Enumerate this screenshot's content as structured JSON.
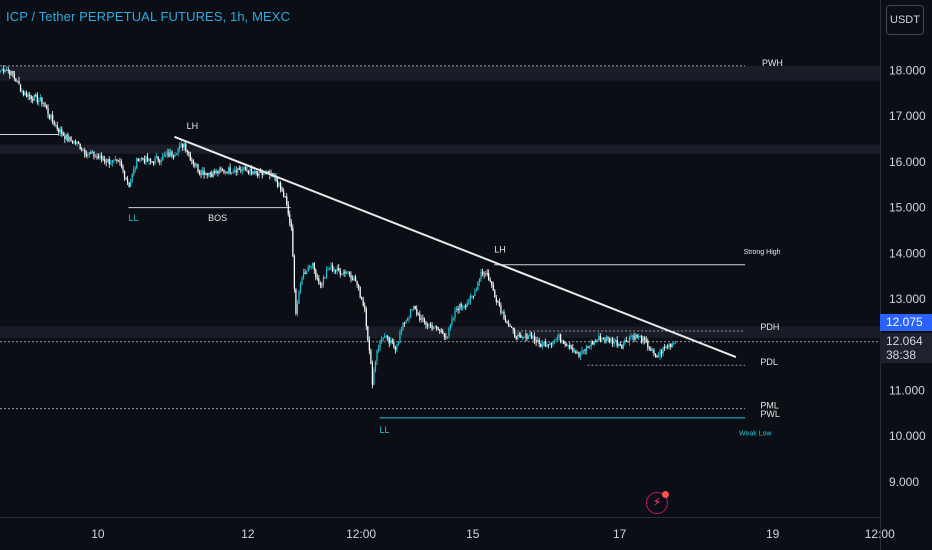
{
  "header": {
    "title": "ICP / Tether PERPETUAL FUTURES, 1h, MEXC",
    "currency": "USDT"
  },
  "price_scale": {
    "last_price": "12.075",
    "current_price": "12.064",
    "countdown": "38:38"
  },
  "icons": {
    "alert": "lightning-alert-icon"
  },
  "colors": {
    "background": "#0c0e15",
    "up": "#26c6da",
    "down": "#ffffff",
    "accent": "#2962ff",
    "title": "#2fa9e0"
  },
  "chart_data": {
    "type": "candlestick",
    "title": "ICP / Tether PERPETUAL FUTURES, 1h, MEXC",
    "timeframe": "1h",
    "exchange": "MEXC",
    "x_ticks": [
      {
        "label": "10",
        "index": 64
      },
      {
        "label": "12",
        "index": 162
      },
      {
        "label": "12:00",
        "index": 236
      },
      {
        "label": "15",
        "index": 309
      },
      {
        "label": "17",
        "index": 405
      },
      {
        "label": "19",
        "index": 505
      },
      {
        "label": "12:00",
        "index": 575
      }
    ],
    "y_ticks": [
      9.0,
      10.0,
      11.0,
      12.0,
      13.0,
      14.0,
      15.0,
      16.0,
      17.0,
      18.0
    ],
    "y_range": [
      8.3,
      19.0
    ],
    "anchors": [
      [
        0,
        18.0
      ],
      [
        3,
        18.05
      ],
      [
        8,
        17.9
      ],
      [
        15,
        17.5
      ],
      [
        22,
        17.4
      ],
      [
        28,
        17.3
      ],
      [
        32,
        17.0
      ],
      [
        38,
        16.7
      ],
      [
        44,
        16.5
      ],
      [
        50,
        16.4
      ],
      [
        56,
        16.2
      ],
      [
        64,
        16.1
      ],
      [
        72,
        16.0
      ],
      [
        78,
        15.95
      ],
      [
        84,
        15.5
      ],
      [
        90,
        16.1
      ],
      [
        98,
        16.0
      ],
      [
        106,
        16.1
      ],
      [
        113,
        16.2
      ],
      [
        120,
        16.4
      ],
      [
        124,
        16.1
      ],
      [
        130,
        15.8
      ],
      [
        138,
        15.75
      ],
      [
        146,
        15.8
      ],
      [
        154,
        15.85
      ],
      [
        162,
        15.8
      ],
      [
        168,
        15.7
      ],
      [
        174,
        15.75
      ],
      [
        180,
        15.6
      ],
      [
        186,
        15.2
      ],
      [
        190,
        14.5
      ],
      [
        193,
        12.7
      ],
      [
        197,
        13.5
      ],
      [
        203,
        13.8
      ],
      [
        209,
        13.3
      ],
      [
        215,
        13.7
      ],
      [
        221,
        13.6
      ],
      [
        227,
        13.6
      ],
      [
        232,
        13.4
      ],
      [
        238,
        12.8
      ],
      [
        243,
        11.2
      ],
      [
        246,
        11.9
      ],
      [
        250,
        12.2
      ],
      [
        254,
        12.05
      ],
      [
        258,
        11.95
      ],
      [
        264,
        12.5
      ],
      [
        270,
        12.8
      ],
      [
        276,
        12.5
      ],
      [
        282,
        12.4
      ],
      [
        287,
        12.3
      ],
      [
        292,
        12.2
      ],
      [
        298,
        12.8
      ],
      [
        304,
        12.9
      ],
      [
        309,
        13.05
      ],
      [
        314,
        13.6
      ],
      [
        318,
        13.55
      ],
      [
        323,
        13.1
      ],
      [
        328,
        12.7
      ],
      [
        334,
        12.3
      ],
      [
        340,
        12.1
      ],
      [
        346,
        12.25
      ],
      [
        352,
        12.0
      ],
      [
        358,
        12.05
      ],
      [
        365,
        12.15
      ],
      [
        372,
        12.0
      ],
      [
        378,
        11.75
      ],
      [
        385,
        12.0
      ],
      [
        392,
        12.15
      ],
      [
        399,
        12.1
      ],
      [
        406,
        12.0
      ],
      [
        412,
        12.2
      ],
      [
        418,
        12.15
      ],
      [
        424,
        11.95
      ],
      [
        428,
        11.7
      ],
      [
        433,
        11.9
      ],
      [
        437,
        12.0
      ],
      [
        441,
        12.064
      ]
    ],
    "annotations": [
      {
        "text": "LH",
        "price": 16.72,
        "index": 122
      },
      {
        "text": "LH",
        "price": 14.02,
        "index": 323
      },
      {
        "text": "LL",
        "price": 14.71,
        "index": 84
      },
      {
        "text": "BOS",
        "price": 14.71,
        "index": 136
      },
      {
        "text": "LL",
        "price": 10.07,
        "index": 248
      },
      {
        "text": "PWH",
        "price": 18.1,
        "index": 498
      },
      {
        "text": "Strong High",
        "price": 13.98,
        "index": 486
      },
      {
        "text": "PDH",
        "price": 12.32,
        "index": 497
      },
      {
        "text": "PDL",
        "price": 11.56,
        "index": 497
      },
      {
        "text": "PML",
        "price": 10.6,
        "index": 497
      },
      {
        "text": "PWL",
        "price": 10.42,
        "index": 497
      },
      {
        "text": "Weak Low",
        "price": 10.01,
        "index": 483
      }
    ],
    "levels": [
      {
        "name": "PWH",
        "price": 18.1,
        "style": "dotted",
        "from": 0,
        "to": 487
      },
      {
        "name": "previous-low",
        "price": 16.6,
        "style": "solid",
        "from": 0,
        "to": 38
      },
      {
        "name": "BOS",
        "price": 15.0,
        "style": "solid",
        "from": 84,
        "to": 190
      },
      {
        "name": "Strong High",
        "price": 13.75,
        "style": "solid",
        "from": 323,
        "to": 487
      },
      {
        "name": "PDH",
        "price": 12.3,
        "style": "dotted",
        "from": 338,
        "to": 487
      },
      {
        "name": "PDL",
        "price": 11.55,
        "style": "dotted",
        "from": 384,
        "to": 487
      },
      {
        "name": "PML",
        "price": 10.6,
        "style": "dotted",
        "from": 0,
        "to": 487
      },
      {
        "name": "PWL",
        "price": 10.4,
        "style": "solid",
        "from": 248,
        "to": 487
      },
      {
        "name": "current-price",
        "price": 12.064,
        "style": "dotted",
        "from": 0,
        "to": 592
      }
    ],
    "zones": [
      {
        "from_price": 18.1,
        "to_price": 17.78
      },
      {
        "from_price": 16.38,
        "to_price": 16.18
      },
      {
        "from_price": 12.4,
        "to_price": 12.15
      }
    ],
    "trendline": {
      "from": [
        114,
        16.55
      ],
      "to": [
        481,
        11.73
      ]
    }
  }
}
